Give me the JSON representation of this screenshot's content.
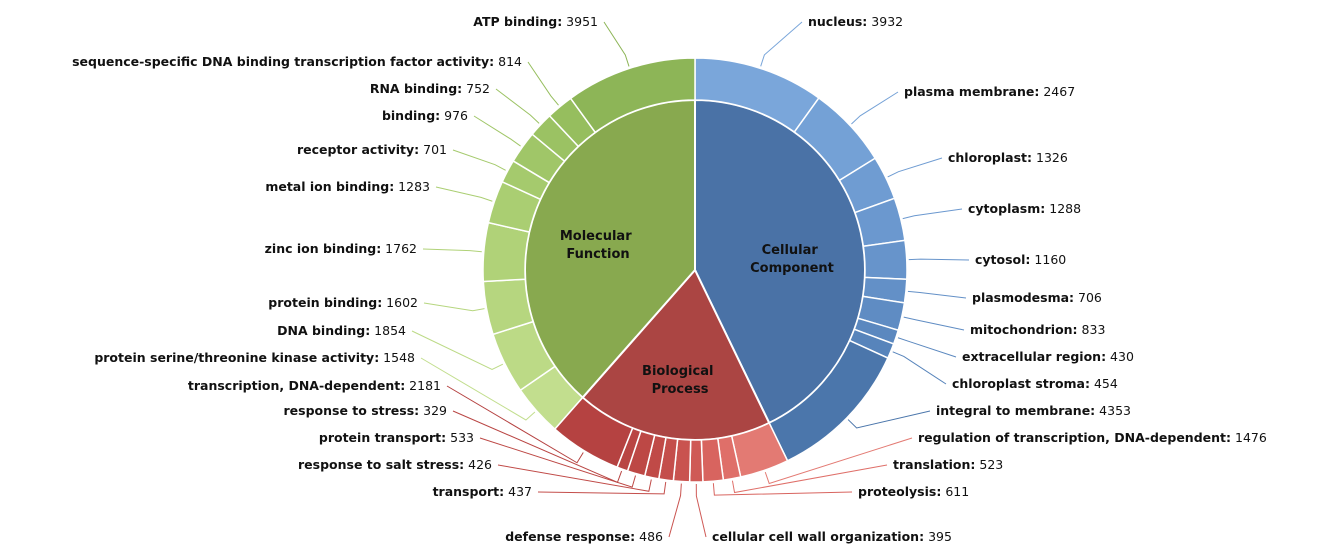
{
  "chart_data": {
    "type": "sunburst",
    "groups": [
      {
        "name": "Cellular Component",
        "color": "#4a72a6",
        "colors": [
          "#7aa6da",
          "#74a1d6",
          "#6f9cd2",
          "#6b98cf",
          "#6794cb",
          "#6390c7",
          "#5f8cc3",
          "#5b88bf",
          "#5784bb",
          "#4b76ab"
        ],
        "values": [
          3932,
          2467,
          1326,
          1288,
          1160,
          706,
          833,
          430,
          454,
          4353
        ],
        "value_labels": [
          "nucleus: 3932",
          "plasma membrane: 2467",
          "chloroplast: 1326",
          "cytoplasm: 1288",
          "cytosol: 1160",
          "plasmodesma: 706",
          "mitochondrion: 833",
          "extracellular region: 430",
          "chloroplast stroma: 454",
          "integral to membrane: 4353"
        ]
      },
      {
        "name": "Biological Process",
        "color": "#ab4543",
        "colors": [
          "#e37a73",
          "#df6f69",
          "#d8645f",
          "#cf5a56",
          "#c9534f",
          "#c44e4b",
          "#c04a47",
          "#bd4845",
          "#b94543",
          "#b54241"
        ],
        "values": [
          1476,
          523,
          611,
          395,
          486,
          437,
          426,
          533,
          329,
          2181
        ],
        "value_labels": [
          "regulation of transcription, DNA-dependent: 1476",
          "translation: 523",
          "proteolysis: 611",
          "cellular cell wall organization: 395",
          "defense response: 486",
          "transport: 437",
          "response to salt stress: 426",
          "protein transport: 533",
          "response to stress: 329",
          "transcription, DNA-dependent: 2181"
        ]
      },
      {
        "name": "Molecular Function",
        "color": "#88a94f",
        "colors": [
          "#c2de8e",
          "#bcda86",
          "#b6d67f",
          "#b0d278",
          "#aace72",
          "#a5ca6d",
          "#a0c668",
          "#9bc263",
          "#96be5e",
          "#8db557"
        ],
        "values": [
          1548,
          1854,
          1602,
          1762,
          1283,
          701,
          976,
          752,
          814,
          3951
        ],
        "value_labels": [
          "protein serine/threonine kinase activity: 1548",
          "DNA binding: 1854",
          "protein binding: 1602",
          "zinc ion binding: 1762",
          "metal ion binding: 1283",
          "receptor activity: 701",
          "binding: 976",
          "RNA binding: 752",
          "sequence-specific DNA binding transcription factor activity: 814",
          "ATP binding: 3951"
        ]
      }
    ]
  }
}
